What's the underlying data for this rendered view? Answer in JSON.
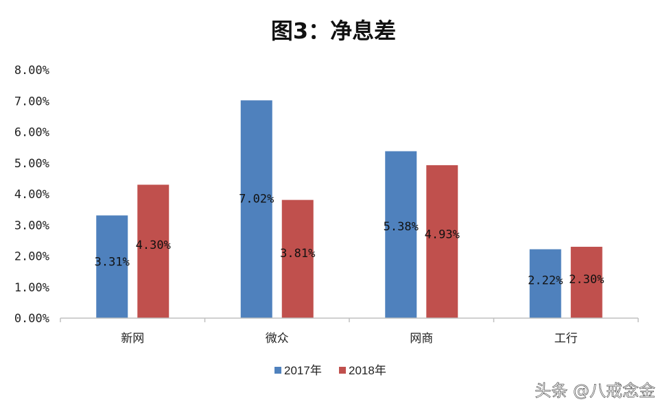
{
  "chart_data": {
    "type": "bar",
    "title": "图3：净息差",
    "categories": [
      "新网",
      "微众",
      "网商",
      "工行"
    ],
    "series": [
      {
        "name": "2017年",
        "color": "#4f81bd",
        "values": [
          3.31,
          7.02,
          5.38,
          2.22
        ],
        "labels": [
          "3.31%",
          "7.02%",
          "5.38%",
          "2.22%"
        ]
      },
      {
        "name": "2018年",
        "color": "#c0504d",
        "values": [
          4.3,
          3.81,
          4.93,
          2.3
        ],
        "labels": [
          "4.30%",
          "3.81%",
          "4.93%",
          "2.30%"
        ]
      }
    ],
    "ylim": [
      0,
      8
    ],
    "yticks": [
      "0.00%",
      "1.00%",
      "2.00%",
      "3.00%",
      "4.00%",
      "5.00%",
      "6.00%",
      "7.00%",
      "8.00%"
    ],
    "xlabel": "",
    "ylabel": "",
    "legend": "bottom",
    "grid": false
  },
  "watermark": "头条 @八戒念金"
}
